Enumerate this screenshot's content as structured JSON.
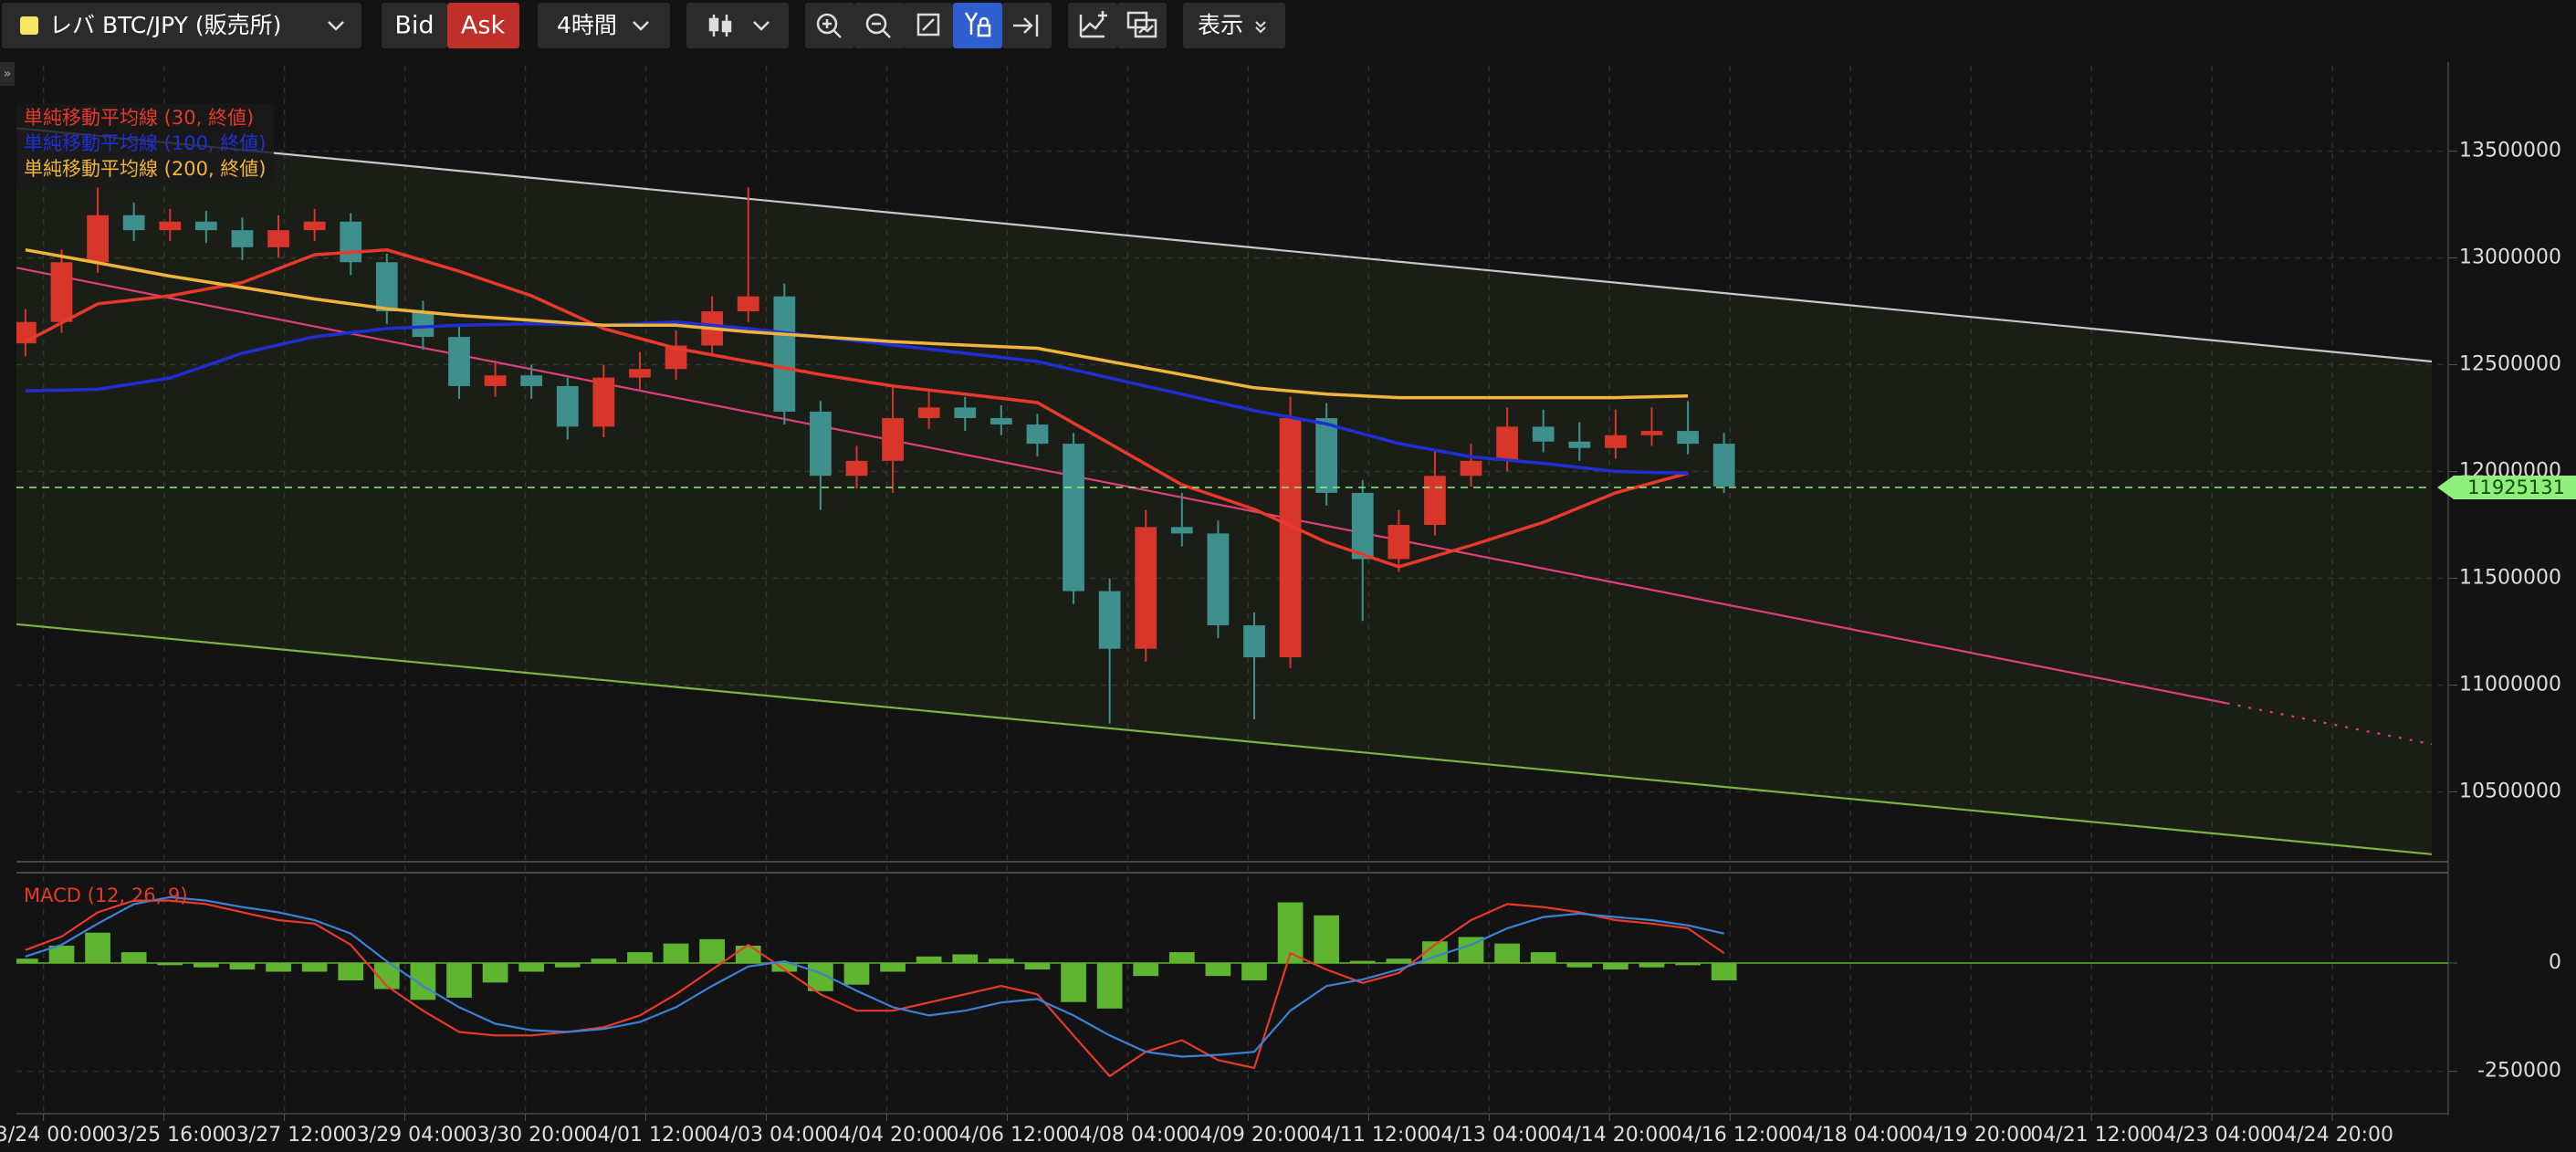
{
  "toolbar": {
    "symbol": "レバ BTC/JPY (販売所)",
    "bid": "Bid",
    "ask": "Ask",
    "interval": "4時間",
    "view": "表示"
  },
  "chart_data": [
    {
      "type": "candlestick",
      "xlim": [
        -9,
        793
      ],
      "xticks": [
        {
          "value": 0,
          "label": "03/24 00:00"
        },
        {
          "value": 40,
          "label": "03/25 16:00"
        },
        {
          "value": 80,
          "label": "03/27 12:00"
        },
        {
          "value": 120,
          "label": "03/29 04:00"
        },
        {
          "value": 160,
          "label": "03/30 20:00"
        },
        {
          "value": 200,
          "label": "04/01 12:00"
        },
        {
          "value": 240,
          "label": "04/03 04:00"
        },
        {
          "value": 280,
          "label": "04/04 20:00"
        },
        {
          "value": 320,
          "label": "04/06 12:00"
        },
        {
          "value": 360,
          "label": "04/08 04:00"
        },
        {
          "value": 400,
          "label": "04/09 20:00"
        },
        {
          "value": 440,
          "label": "04/11 12:00"
        },
        {
          "value": 480,
          "label": "04/13 04:00"
        },
        {
          "value": 520,
          "label": "04/14 20:00"
        },
        {
          "value": 560,
          "label": "04/16 12:00"
        },
        {
          "value": 600,
          "label": "04/18 04:00"
        },
        {
          "value": 640,
          "label": "04/19 20:00"
        },
        {
          "value": 680,
          "label": "04/21 12:00"
        },
        {
          "value": 720,
          "label": "04/23 04:00"
        },
        {
          "value": 760,
          "label": "04/24 20:00"
        }
      ],
      "ylim": [
        10190000,
        13900000
      ],
      "yticks": [
        10500000,
        11000000,
        11500000,
        12000000,
        12500000,
        13000000,
        13500000
      ],
      "grid": true,
      "up_color": "#d8362b",
      "down_color": "#3f8f8c",
      "x": [
        -6,
        6,
        18,
        30,
        42,
        54,
        66,
        78,
        90,
        102,
        114,
        126,
        138,
        150,
        162,
        174,
        186,
        198,
        210,
        222,
        234,
        246,
        258,
        270,
        282,
        294,
        306,
        318,
        330,
        342,
        354,
        366,
        378,
        390,
        402,
        414,
        426,
        438,
        450,
        462,
        474,
        486,
        498,
        510,
        522,
        534,
        546,
        558
      ],
      "candles": [
        [
          12600000,
          12760000,
          12540000,
          12700000
        ],
        [
          12700000,
          13040000,
          12650000,
          12980000
        ],
        [
          12980000,
          13330000,
          12930000,
          13200000
        ],
        [
          13200000,
          13260000,
          13080000,
          13130000
        ],
        [
          13130000,
          13230000,
          13080000,
          13170000
        ],
        [
          13170000,
          13220000,
          13070000,
          13130000
        ],
        [
          13130000,
          13190000,
          12990000,
          13050000
        ],
        [
          13050000,
          13200000,
          13000000,
          13130000
        ],
        [
          13130000,
          13230000,
          13080000,
          13170000
        ],
        [
          13170000,
          13210000,
          12920000,
          12980000
        ],
        [
          12980000,
          13020000,
          12690000,
          12750000
        ],
        [
          12750000,
          12800000,
          12570000,
          12630000
        ],
        [
          12630000,
          12680000,
          12340000,
          12400000
        ],
        [
          12400000,
          12520000,
          12350000,
          12450000
        ],
        [
          12450000,
          12500000,
          12340000,
          12400000
        ],
        [
          12400000,
          12440000,
          12150000,
          12210000
        ],
        [
          12210000,
          12500000,
          12160000,
          12440000
        ],
        [
          12440000,
          12560000,
          12380000,
          12480000
        ],
        [
          12480000,
          12660000,
          12430000,
          12590000
        ],
        [
          12590000,
          12820000,
          12540000,
          12750000
        ],
        [
          12750000,
          13330000,
          12700000,
          12820000
        ],
        [
          12820000,
          12880000,
          12220000,
          12280000
        ],
        [
          12280000,
          12330000,
          11820000,
          11980000
        ],
        [
          11980000,
          12120000,
          11920000,
          12050000
        ],
        [
          12050000,
          12400000,
          11900000,
          12250000
        ],
        [
          12250000,
          12380000,
          12200000,
          12300000
        ],
        [
          12300000,
          12350000,
          12190000,
          12250000
        ],
        [
          12250000,
          12310000,
          12170000,
          12220000
        ],
        [
          12220000,
          12270000,
          12070000,
          12130000
        ],
        [
          12130000,
          12180000,
          11380000,
          11440000
        ],
        [
          11440000,
          11500000,
          10820000,
          11170000
        ],
        [
          11170000,
          11820000,
          11110000,
          11740000
        ],
        [
          11740000,
          11900000,
          11650000,
          11710000
        ],
        [
          11710000,
          11770000,
          11220000,
          11280000
        ],
        [
          11280000,
          11340000,
          10840000,
          11130000
        ],
        [
          11130000,
          12350000,
          11080000,
          12250000
        ],
        [
          12250000,
          12320000,
          11840000,
          11900000
        ],
        [
          11900000,
          11960000,
          11300000,
          11590000
        ],
        [
          11590000,
          11820000,
          11530000,
          11750000
        ],
        [
          11750000,
          12100000,
          11700000,
          11980000
        ],
        [
          11980000,
          12130000,
          11930000,
          12050000
        ],
        [
          12050000,
          12300000,
          12000000,
          12210000
        ],
        [
          12210000,
          12290000,
          12090000,
          12140000
        ],
        [
          12140000,
          12230000,
          12050000,
          12110000
        ],
        [
          12110000,
          12290000,
          12060000,
          12170000
        ],
        [
          12170000,
          12300000,
          12120000,
          12190000
        ],
        [
          12190000,
          12330000,
          12080000,
          12130000
        ],
        [
          12130000,
          12180000,
          11900000,
          11930000
        ]
      ],
      "series": [
        {
          "name": "単純移動平均線 (30, 終値)",
          "color": "#e8392b",
          "x": [
            -6,
            18,
            42,
            66,
            90,
            114,
            138,
            162,
            186,
            210,
            234,
            258,
            282,
            306,
            330,
            354,
            378,
            402,
            426,
            450,
            474,
            498,
            522,
            546
          ],
          "values": [
            12608000,
            12785000,
            12823000,
            12885000,
            13015000,
            13038000,
            12938000,
            12823000,
            12669000,
            12577000,
            12515000,
            12454000,
            12400000,
            12362000,
            12323000,
            12131000,
            11938000,
            11823000,
            11669000,
            11554000,
            11654000,
            11762000,
            11900000,
            11992000
          ]
        },
        {
          "name": "単純移動平均線 (100, 終値)",
          "color": "#1f2fd6",
          "x": [
            -6,
            18,
            42,
            66,
            90,
            114,
            138,
            162,
            186,
            210,
            234,
            258,
            282,
            306,
            330,
            354,
            378,
            402,
            426,
            450,
            474,
            498,
            522,
            546
          ],
          "values": [
            12377000,
            12385000,
            12438000,
            12554000,
            12631000,
            12669000,
            12685000,
            12692000,
            12685000,
            12700000,
            12669000,
            12631000,
            12592000,
            12554000,
            12515000,
            12438000,
            12362000,
            12285000,
            12223000,
            12131000,
            12069000,
            12038000,
            12000000,
            11992000
          ]
        },
        {
          "name": "単純移動平均線 (200, 終値)",
          "color": "#f0b43c",
          "x": [
            -6,
            18,
            42,
            66,
            90,
            114,
            138,
            162,
            186,
            210,
            234,
            258,
            282,
            306,
            330,
            354,
            378,
            402,
            426,
            450,
            474,
            498,
            522,
            546
          ],
          "values": [
            13038000,
            12977000,
            12915000,
            12862000,
            12808000,
            12762000,
            12731000,
            12708000,
            12685000,
            12685000,
            12654000,
            12631000,
            12608000,
            12592000,
            12577000,
            12515000,
            12454000,
            12392000,
            12362000,
            12346000,
            12346000,
            12346000,
            12346000,
            12354000
          ]
        }
      ],
      "trendlines": [
        {
          "color": "#c8c8c8",
          "x": [
            -9,
            793
          ],
          "values": [
            13608000,
            12515000
          ]
        },
        {
          "color": "#7cb342",
          "x": [
            -9,
            793
          ],
          "values": [
            11285000,
            10208000
          ]
        },
        {
          "color": "#e0407a",
          "x": [
            -9,
            725
          ],
          "values": [
            12954000,
            10915000
          ]
        },
        {
          "color": "#e0407a",
          "dashed": true,
          "x": [
            725,
            793
          ],
          "values": [
            10915000,
            10723000
          ]
        }
      ],
      "channel_color": "#7cb342",
      "last_price": 11925131,
      "last_price_color": "#8ef07a"
    },
    {
      "type": "macd",
      "title": "MACD (12, 26, 9)",
      "ylim": [
        -337000,
        200000
      ],
      "yticks": [
        0,
        -250000
      ],
      "x": [
        -6,
        6,
        18,
        30,
        42,
        54,
        66,
        78,
        90,
        102,
        114,
        126,
        138,
        150,
        162,
        174,
        186,
        198,
        210,
        222,
        234,
        246,
        258,
        270,
        282,
        294,
        306,
        318,
        330,
        342,
        354,
        366,
        378,
        390,
        402,
        414,
        426,
        438,
        450,
        462,
        474,
        486,
        498,
        510,
        522,
        534,
        546,
        558
      ],
      "histogram": {
        "color": "#5fb52f",
        "values": [
          10000,
          40000,
          70000,
          25000,
          -5000,
          -10000,
          -15000,
          -20000,
          -20000,
          -40000,
          -60000,
          -85000,
          -80000,
          -45000,
          -20000,
          -10000,
          10000,
          25000,
          45000,
          55000,
          40000,
          -20000,
          -65000,
          -50000,
          -20000,
          15000,
          20000,
          10000,
          -15000,
          -90000,
          -105000,
          -30000,
          25000,
          -30000,
          -40000,
          140000,
          110000,
          5000,
          10000,
          50000,
          60000,
          45000,
          25000,
          -10000,
          -15000,
          -10000,
          -5000,
          -40000
        ]
      },
      "series": [
        {
          "color": "#e8392b",
          "values": [
            30000,
            61000,
            117000,
            144000,
            144000,
            136000,
            117000,
            99000,
            91000,
            42000,
            -53000,
            -110000,
            -159000,
            -167000,
            -167000,
            -159000,
            -148000,
            -121000,
            -72000,
            -15000,
            42000,
            -15000,
            -72000,
            -110000,
            -110000,
            -91000,
            -72000,
            -53000,
            -72000,
            -167000,
            -261000,
            -205000,
            -178000,
            -224000,
            -242000,
            23000,
            -15000,
            -46000,
            -23000,
            42000,
            99000,
            136000,
            129000,
            117000,
            99000,
            91000,
            80000,
            23000
          ]
        },
        {
          "color": "#3b82d6",
          "values": [
            15000,
            42000,
            91000,
            136000,
            152000,
            144000,
            129000,
            117000,
            99000,
            68000,
            4000,
            -53000,
            -102000,
            -140000,
            -155000,
            -159000,
            -152000,
            -136000,
            -102000,
            -53000,
            -8000,
            4000,
            -23000,
            -64000,
            -102000,
            -121000,
            -110000,
            -91000,
            -83000,
            -121000,
            -167000,
            -205000,
            -216000,
            -212000,
            -205000,
            -110000,
            -53000,
            -38000,
            -15000,
            15000,
            42000,
            80000,
            106000,
            114000,
            106000,
            99000,
            87000,
            68000
          ]
        }
      ]
    }
  ]
}
